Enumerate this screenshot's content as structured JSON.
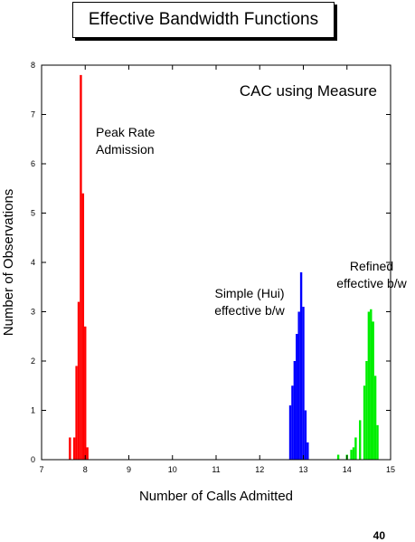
{
  "slide": {
    "title": "Effective Bandwidth Functions",
    "page_number": "40"
  },
  "colors": {
    "peak": "#ff0000",
    "simple": "#0000ff",
    "refined": "#00ee00",
    "axis": "#000000"
  },
  "chart_data": {
    "type": "bar",
    "title": "CAC using Measure",
    "xlabel": "Number of Calls Admitted",
    "ylabel": "Number of Observations",
    "xlim": [
      7,
      15
    ],
    "ylim": [
      0,
      8
    ],
    "xticks": [
      7,
      8,
      9,
      10,
      11,
      12,
      13,
      14,
      15
    ],
    "yticks": [
      0,
      1,
      2,
      3,
      4,
      5,
      6,
      7,
      8
    ],
    "grid": false,
    "bar_width": 0.05,
    "series": [
      {
        "key": "peak",
        "labels": [
          "Peak Rate",
          "Admission"
        ],
        "x": [
          7.65,
          7.75,
          7.8,
          7.85,
          7.9,
          7.95,
          8.0,
          8.05
        ],
        "values": [
          0.45,
          0.45,
          1.9,
          3.2,
          7.8,
          5.4,
          2.7,
          0.25
        ]
      },
      {
        "key": "simple",
        "labels": [
          "Simple (Hui)",
          "effective b/w"
        ],
        "x": [
          12.7,
          12.75,
          12.8,
          12.85,
          12.9,
          12.95,
          13.0,
          13.05,
          13.1
        ],
        "values": [
          1.1,
          1.5,
          2.0,
          2.55,
          3.0,
          3.8,
          3.1,
          1.0,
          0.35
        ]
      },
      {
        "key": "refined",
        "labels": [
          "Refined",
          "effective b/w"
        ],
        "x": [
          13.8,
          14.0,
          14.1,
          14.15,
          14.2,
          14.3,
          14.4,
          14.45,
          14.5,
          14.55,
          14.6,
          14.65,
          14.7
        ],
        "values": [
          0.1,
          0.1,
          0.2,
          0.25,
          0.45,
          0.8,
          1.5,
          2.0,
          3.0,
          3.05,
          2.8,
          1.7,
          0.7
        ]
      }
    ]
  }
}
